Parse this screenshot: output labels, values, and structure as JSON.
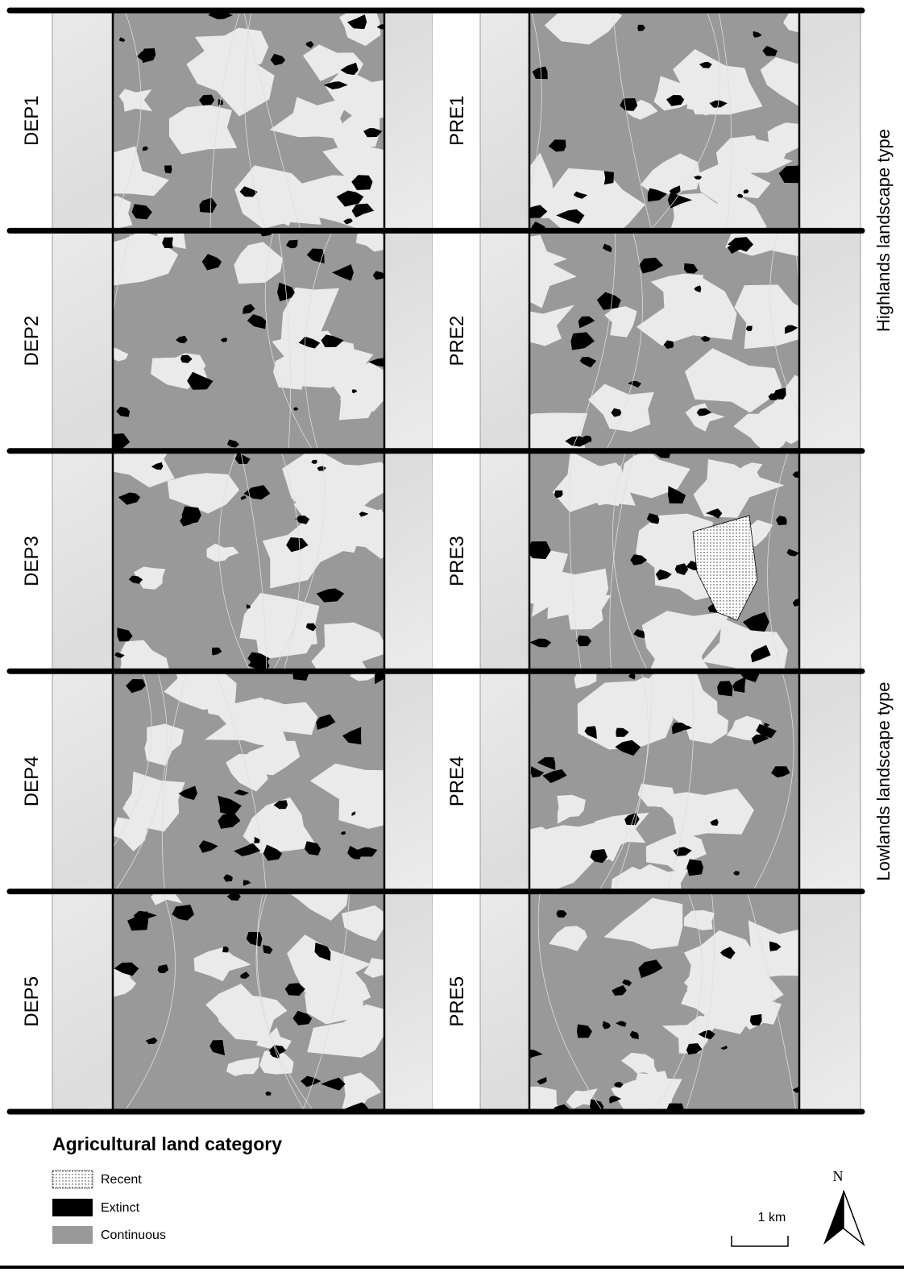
{
  "rows": [
    {
      "left": "DEP1",
      "right": "PRE1"
    },
    {
      "left": "DEP2",
      "right": "PRE2"
    },
    {
      "left": "DEP3",
      "right": "PRE3"
    },
    {
      "left": "DEP4",
      "right": "PRE4"
    },
    {
      "left": "DEP5",
      "right": "PRE5"
    }
  ],
  "landscape_types": [
    "Highlands landscape type",
    "Lowlands landscape type"
  ],
  "legend": {
    "title": "Agricultural land category",
    "items": [
      "Recent",
      "Extinct",
      "Continuous"
    ]
  },
  "scale_bar": "1 km",
  "north_arrow": "N"
}
